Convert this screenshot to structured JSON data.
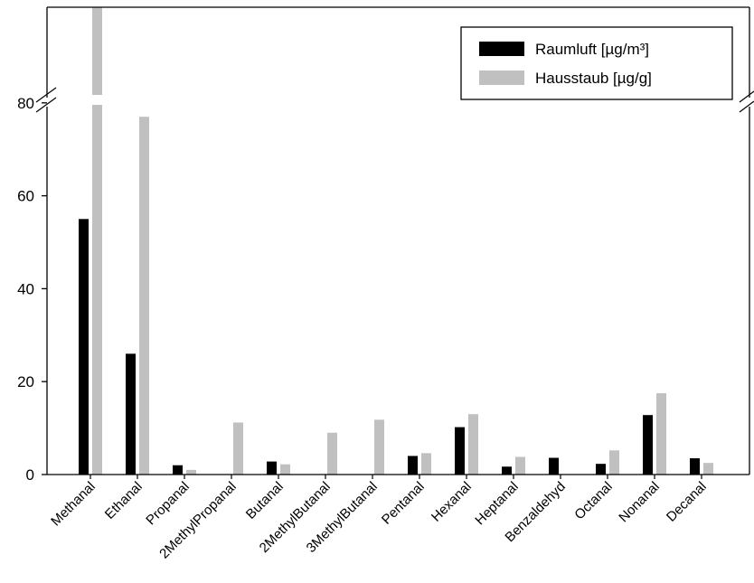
{
  "chart_data": {
    "type": "bar",
    "categories": [
      "Methanal",
      "Ethanal",
      "Propanal",
      "2MethylPropanal",
      "Butanal",
      "2MethylButanal",
      "3MethylButanal",
      "Pentanal",
      "Hexanal",
      "Heptanal",
      "Benzaldehyd",
      "Octanal",
      "Nonanal",
      "Decanal"
    ],
    "series": [
      {
        "name": "Raumluft [µg/m³]",
        "color": "#000000",
        "values": [
          55,
          26,
          2,
          0,
          2.8,
          0,
          0,
          4,
          10.2,
          1.7,
          3.6,
          2.3,
          12.8,
          3.5
        ]
      },
      {
        "name": "Hausstaub [µg/g]",
        "color": "#c0c0c0",
        "values": [
          null,
          77,
          1,
          11.2,
          2.2,
          9,
          11.8,
          4.6,
          13,
          3.8,
          0,
          5.2,
          17.5,
          2.5
        ]
      }
    ],
    "yticks": [
      "0",
      "20",
      "40",
      "60",
      "80"
    ],
    "ylim": [
      0,
      80
    ],
    "y_axis_break": true,
    "legend": "top-right",
    "grid": false
  }
}
